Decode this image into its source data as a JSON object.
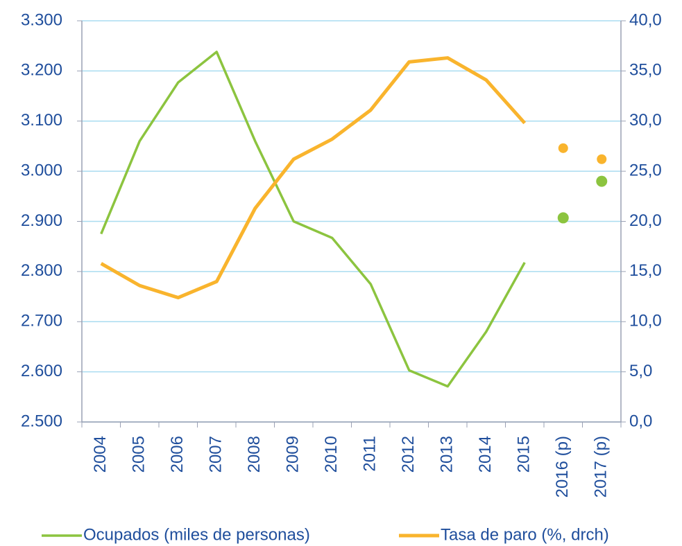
{
  "chart_data": {
    "type": "line",
    "categories": [
      "2004",
      "2005",
      "2006",
      "2007",
      "2008",
      "2009",
      "2010",
      "2011",
      "2012",
      "2013",
      "2014",
      "2015",
      "2016 (p)",
      "2017 (p)"
    ],
    "projected": [
      false,
      false,
      false,
      false,
      false,
      false,
      false,
      false,
      false,
      false,
      false,
      false,
      true,
      true
    ],
    "series": [
      {
        "name": "Ocupados (miles de personas)",
        "color": "#8cc43f",
        "axis": "y",
        "values": [
          2875,
          3060,
          3177,
          3238,
          3060,
          2900,
          2867,
          2775,
          2603,
          2571,
          2680,
          2818,
          2907,
          2980
        ]
      },
      {
        "name": "Tasa de paro (%, drch)",
        "color": "#f9b42d",
        "axis": "y2",
        "values": [
          15.8,
          13.6,
          12.4,
          14.0,
          21.3,
          26.2,
          28.2,
          31.1,
          35.9,
          36.3,
          34.1,
          29.8,
          27.3,
          26.2
        ]
      }
    ],
    "ylim": [
      2500,
      3300
    ],
    "yticks": [
      {
        "value": 2500,
        "label": "2.500"
      },
      {
        "value": 2600,
        "label": "2.600"
      },
      {
        "value": 2700,
        "label": "2.700"
      },
      {
        "value": 2800,
        "label": "2.800"
      },
      {
        "value": 2900,
        "label": "2.900"
      },
      {
        "value": 3000,
        "label": "3.000"
      },
      {
        "value": 3100,
        "label": "3.100"
      },
      {
        "value": 3200,
        "label": "3.200"
      },
      {
        "value": 3300,
        "label": "3.300"
      }
    ],
    "y2lim": [
      0,
      40
    ],
    "y2ticks": [
      {
        "value": 0,
        "label": "0,0"
      },
      {
        "value": 5,
        "label": "5,0"
      },
      {
        "value": 10,
        "label": "10,0"
      },
      {
        "value": 15,
        "label": "15,0"
      },
      {
        "value": 20,
        "label": "20,0"
      },
      {
        "value": 25,
        "label": "25,0"
      },
      {
        "value": 30,
        "label": "30,0"
      },
      {
        "value": 35,
        "label": "35,0"
      },
      {
        "value": 40,
        "label": "40,0"
      }
    ],
    "grid": true,
    "legend": "bottom"
  }
}
